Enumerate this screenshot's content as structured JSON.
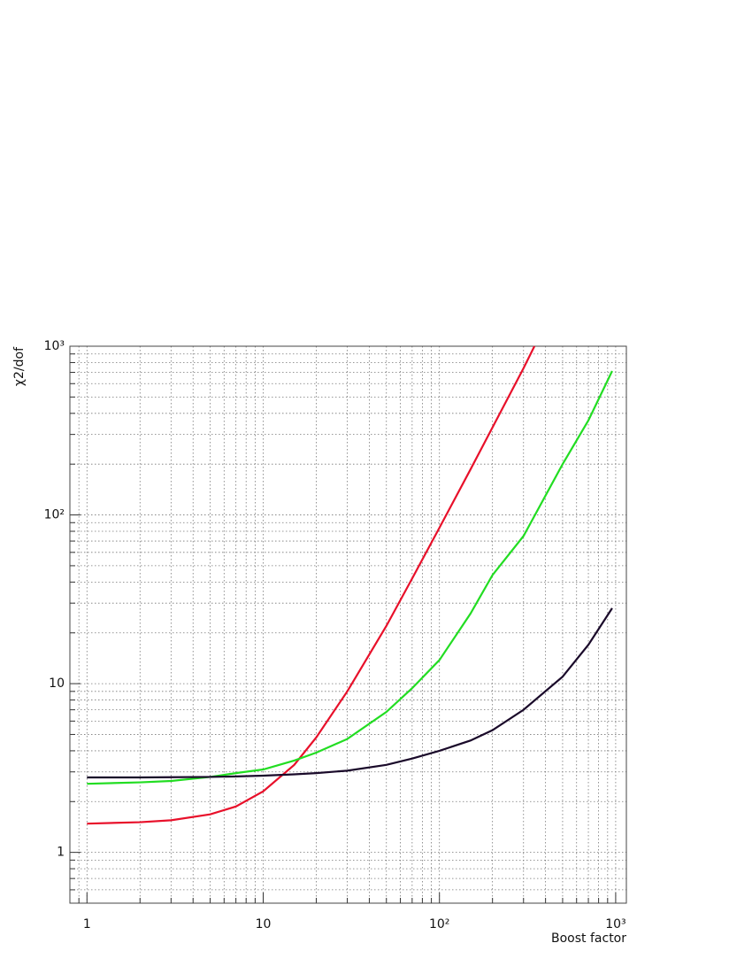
{
  "chart_data": {
    "type": "line",
    "x_label": "Boost factor",
    "y_label": "χ2/dof",
    "xlog": true,
    "ylog": true,
    "grid": true,
    "xlim": [
      0.8,
      1150
    ],
    "ylim": [
      0.5,
      1000
    ],
    "xticks": [
      1,
      10,
      {
        "value": 100,
        "label": "10²"
      },
      {
        "value": 1000,
        "label": "10³"
      }
    ],
    "yticks": [
      1,
      10,
      {
        "value": 100,
        "label": "10²"
      },
      {
        "value": 1000,
        "label": "10³"
      }
    ],
    "xminorticks": [
      0.8,
      0.9,
      2,
      3,
      4,
      5,
      6,
      7,
      8,
      9,
      20,
      30,
      40,
      50,
      60,
      70,
      80,
      90,
      200,
      300,
      400,
      500,
      600,
      700,
      800,
      900
    ],
    "yminorticks": [
      0.6,
      0.7,
      0.8,
      0.9,
      2,
      3,
      4,
      5,
      6,
      7,
      8,
      9,
      20,
      30,
      40,
      50,
      60,
      70,
      80,
      90,
      200,
      300,
      400,
      500,
      600,
      700,
      800,
      900
    ],
    "series": [
      {
        "color": "#e8102a",
        "x": [
          1,
          2,
          3,
          5,
          7,
          10,
          15,
          20,
          30,
          50,
          70,
          100,
          150,
          200,
          300,
          346
        ],
        "values": [
          1.48,
          1.51,
          1.55,
          1.68,
          1.87,
          2.3,
          3.3,
          4.8,
          9.0,
          22,
          42,
          84,
          186,
          330,
          740,
          1000
        ]
      },
      {
        "color": "#22dd22",
        "x": [
          1,
          2,
          3,
          5,
          7,
          10,
          15,
          20,
          30,
          50,
          70,
          100,
          150,
          200,
          300,
          500,
          700,
          955
        ],
        "values": [
          2.55,
          2.6,
          2.65,
          2.8,
          2.95,
          3.1,
          3.5,
          3.9,
          4.7,
          6.8,
          9.4,
          13.8,
          26,
          44,
          75,
          200,
          363,
          713
        ]
      },
      {
        "color": "#1a0a2a",
        "x": [
          1,
          2,
          3,
          5,
          7,
          10,
          15,
          20,
          30,
          50,
          70,
          100,
          150,
          200,
          300,
          500,
          700,
          955
        ],
        "values": [
          2.78,
          2.78,
          2.79,
          2.8,
          2.82,
          2.85,
          2.9,
          2.95,
          3.05,
          3.3,
          3.6,
          4.0,
          4.6,
          5.3,
          7.0,
          11,
          17,
          28
        ]
      }
    ]
  }
}
